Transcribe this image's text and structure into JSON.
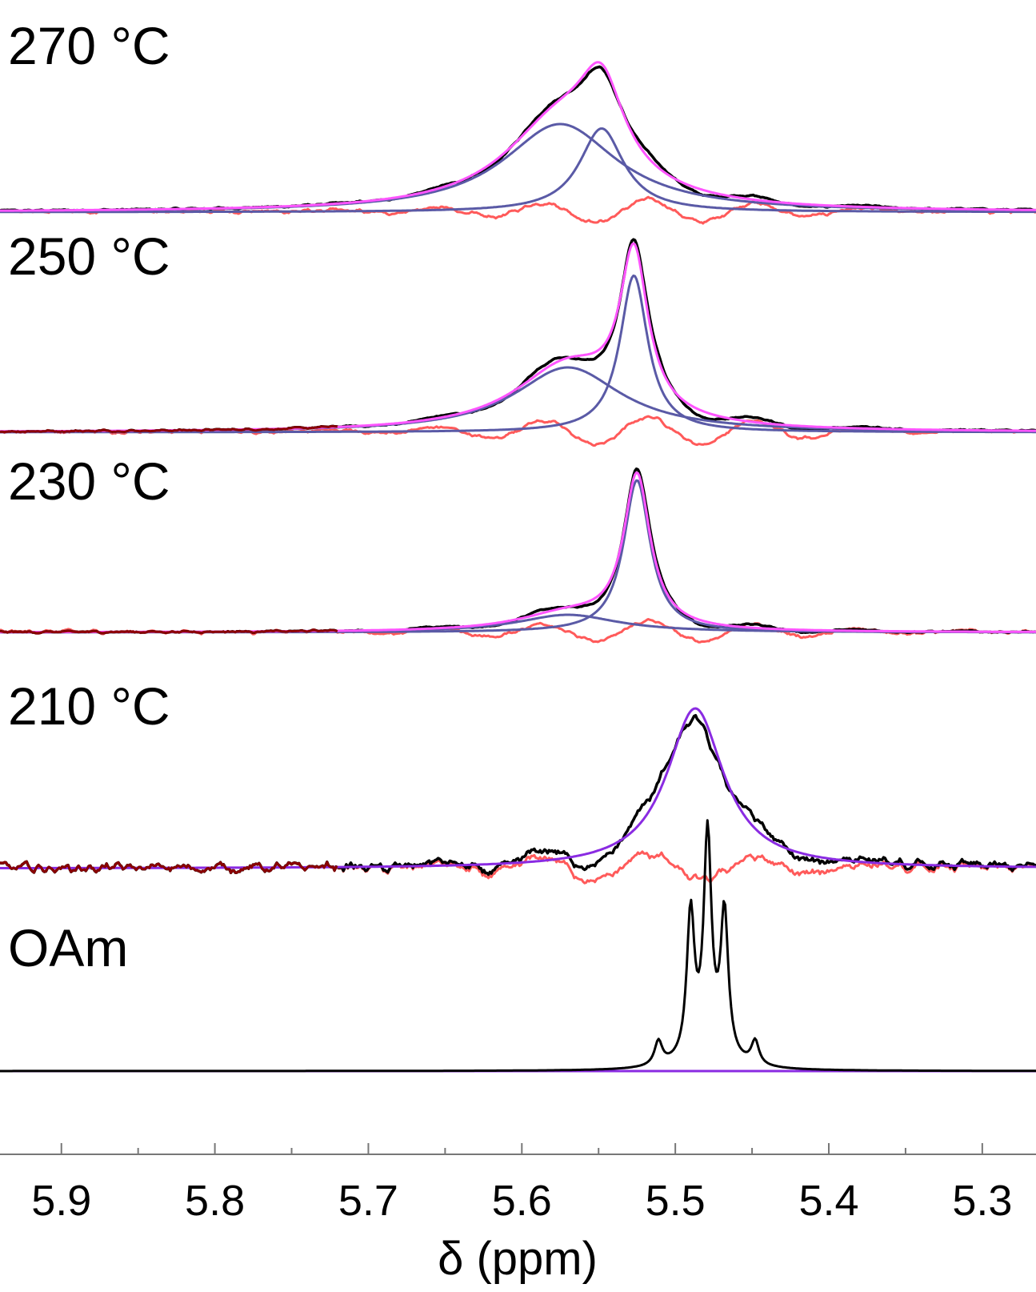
{
  "chart_data": {
    "type": "line",
    "xlabel": "δ (ppm)",
    "ylabel": "",
    "xlim": [
      5.94,
      5.265
    ],
    "x_reversed": true,
    "x_ticks": [
      5.9,
      5.8,
      5.7,
      5.6,
      5.5,
      5.4,
      5.3
    ],
    "x_tick_labels": [
      "5.9",
      "5.8",
      "5.7",
      "5.6",
      "5.5",
      "5.4",
      "5.3"
    ],
    "grid": false,
    "colors": {
      "data": "#000000",
      "fit": "#ff55ff",
      "component": "#5a5aa6",
      "residual": "#ff5a5a",
      "residual_dark": "#8b0000",
      "fit_dark": "#8a2be2"
    },
    "panels": [
      {
        "label": "270 °C",
        "components": [
          {
            "center": 5.575,
            "width": 0.09,
            "amplitude": 1.0
          },
          {
            "center": 5.548,
            "width": 0.035,
            "amplitude": 0.95
          }
        ],
        "data_peak_ppm": 5.55,
        "noise": 0.02
      },
      {
        "label": "250 °C",
        "components": [
          {
            "center": 5.57,
            "width": 0.085,
            "amplitude": 0.6
          },
          {
            "center": 5.527,
            "width": 0.022,
            "amplitude": 1.45
          }
        ],
        "data_peak_ppm": 5.527,
        "noise": 0.015
      },
      {
        "label": "230 °C",
        "components": [
          {
            "center": 5.57,
            "width": 0.08,
            "amplitude": 0.22
          },
          {
            "center": 5.525,
            "width": 0.021,
            "amplitude": 1.9
          }
        ],
        "data_peak_ppm": 5.525,
        "noise": 0.02
      },
      {
        "label": "210 °C",
        "components": [
          {
            "center": 5.487,
            "width": 0.045,
            "amplitude": 2.0
          }
        ],
        "data_peak_ppm": 5.487,
        "noise": 0.12
      },
      {
        "label": "OAm",
        "multiplet": [
          {
            "center": 5.511,
            "amplitude": 0.2
          },
          {
            "center": 5.49,
            "amplitude": 1.2
          },
          {
            "center": 5.479,
            "amplitude": 1.8
          },
          {
            "center": 5.468,
            "amplitude": 1.2
          },
          {
            "center": 5.448,
            "amplitude": 0.2
          }
        ],
        "data_peak_ppm": 5.479
      }
    ]
  }
}
